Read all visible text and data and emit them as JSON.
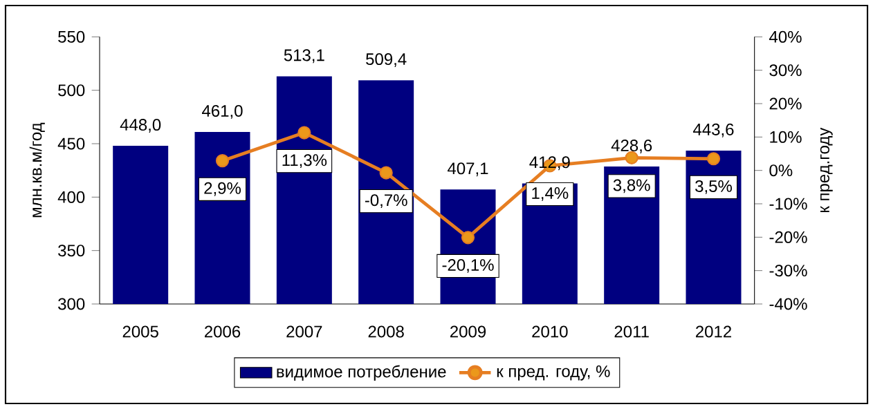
{
  "chart_data": {
    "type": "bar",
    "ylabel": "млн.кв.м/год",
    "y2label": "к пред.году",
    "categories": [
      "2005",
      "2006",
      "2007",
      "2008",
      "2009",
      "2010",
      "2011",
      "2012"
    ],
    "series": [
      {
        "name": "видимое потребление",
        "color": "#000080",
        "values": [
          448.0,
          461.0,
          513.1,
          509.4,
          407.1,
          412.9,
          428.6,
          443.6
        ],
        "value_labels": [
          "448,0",
          "461,0",
          "513,1",
          "509,4",
          "407,1",
          "412,9",
          "428,6",
          "443,6"
        ]
      },
      {
        "name": "к пред. году, %",
        "type": "line",
        "axis": "y2",
        "marker": "circle",
        "color": "#e67e22",
        "values": [
          null,
          2.9,
          11.3,
          -0.7,
          -20.1,
          1.4,
          3.8,
          3.5
        ],
        "value_labels": [
          null,
          "2,9%",
          "11,3%",
          "-0,7%",
          "-20,1%",
          "1,4%",
          "3,8%",
          "3,5%"
        ]
      }
    ],
    "ylim": [
      300,
      550
    ],
    "yticks": [
      300,
      350,
      400,
      450,
      500,
      550
    ],
    "y2lim": [
      -40,
      40
    ],
    "y2ticks": [
      {
        "value": -40,
        "label": "-40%"
      },
      {
        "value": -30,
        "label": "-30%"
      },
      {
        "value": -20,
        "label": "-20%"
      },
      {
        "value": -10,
        "label": "-10%"
      },
      {
        "value": 0,
        "label": "0%"
      },
      {
        "value": 10,
        "label": "10%"
      },
      {
        "value": 20,
        "label": "20%"
      },
      {
        "value": 30,
        "label": "30%"
      },
      {
        "value": 40,
        "label": "40%"
      }
    ],
    "legend": "bottom"
  }
}
